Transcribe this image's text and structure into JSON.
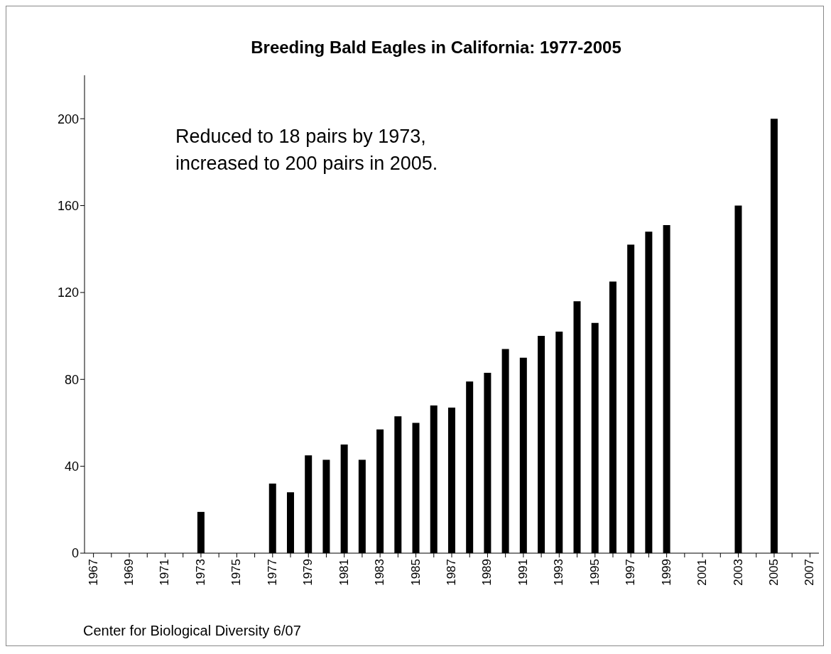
{
  "chart_data": {
    "type": "bar",
    "title": "Breeding Bald Eagles in California: 1977-2005",
    "categories": [
      "1967",
      null,
      "1969",
      null,
      "1971",
      null,
      "1973",
      null,
      "1975",
      null,
      "1977",
      null,
      "1979",
      null,
      "1981",
      null,
      "1983",
      null,
      "1985",
      null,
      "1987",
      null,
      "1989",
      null,
      "1991",
      null,
      "1993",
      null,
      "1995",
      null,
      "1997",
      null,
      "1999",
      null,
      "2001",
      null,
      "2003",
      null,
      "2005",
      null,
      "2007"
    ],
    "values": [
      null,
      null,
      null,
      null,
      null,
      null,
      19,
      null,
      null,
      null,
      32,
      28,
      45,
      43,
      50,
      43,
      57,
      63,
      60,
      68,
      67,
      79,
      83,
      94,
      90,
      100,
      102,
      116,
      106,
      125,
      142,
      148,
      151,
      null,
      null,
      null,
      160,
      null,
      200,
      null,
      null
    ],
    "color": "#000000",
    "ylim": [
      0,
      220
    ],
    "yticks": [
      0,
      40,
      80,
      120,
      160,
      200
    ],
    "grid": false,
    "legend": false,
    "annotations": [
      "Reduced to 18 pairs by 1973,\nincreased to 200 pairs in 2005.",
      "Center for Biological Diversity 6/07"
    ]
  }
}
